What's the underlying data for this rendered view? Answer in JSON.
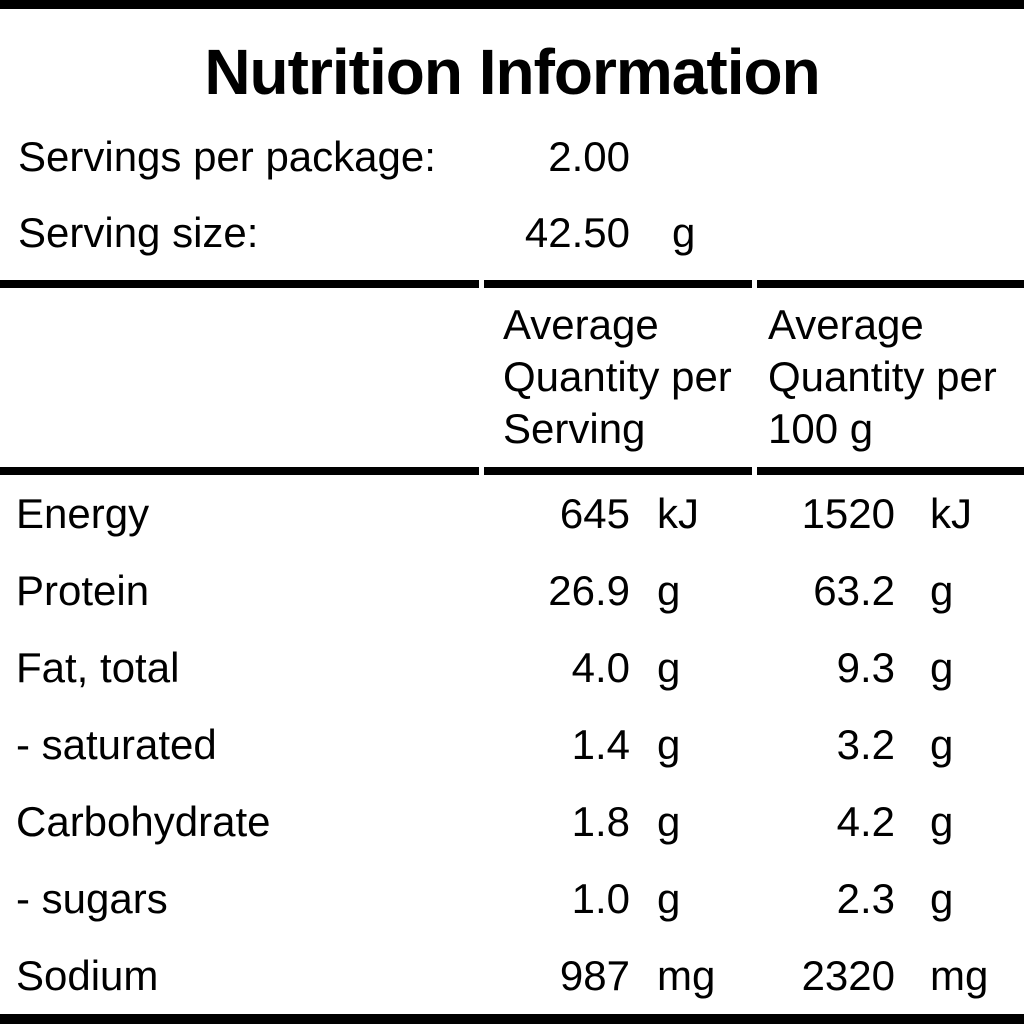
{
  "title": "Nutrition Information",
  "serving_info": {
    "rows": [
      {
        "label": "Servings per package:",
        "value": "2.00",
        "unit": ""
      },
      {
        "label": "Serving size:",
        "value": "42.50",
        "unit": "g"
      }
    ]
  },
  "table": {
    "header": {
      "nutrient_column": "",
      "per_serving_column": "Average Quantity per Serving",
      "per_100g_column": "Average Quantity per 100 g"
    },
    "rows": [
      {
        "nutrient": "Energy",
        "per_serving": "645",
        "per_serving_unit": "kJ",
        "per_100g": "1520",
        "per_100g_unit": "kJ"
      },
      {
        "nutrient": "Protein",
        "per_serving": "26.9",
        "per_serving_unit": "g",
        "per_100g": "63.2",
        "per_100g_unit": "g"
      },
      {
        "nutrient": "Fat, total",
        "per_serving": "4.0",
        "per_serving_unit": "g",
        "per_100g": "9.3",
        "per_100g_unit": "g"
      },
      {
        "nutrient": "- saturated",
        "per_serving": "1.4",
        "per_serving_unit": "g",
        "per_100g": "3.2",
        "per_100g_unit": "g"
      },
      {
        "nutrient": "Carbohydrate",
        "per_serving": "1.8",
        "per_serving_unit": "g",
        "per_100g": "4.2",
        "per_100g_unit": "g"
      },
      {
        "nutrient": "- sugars",
        "per_serving": "1.0",
        "per_serving_unit": "g",
        "per_100g": "2.3",
        "per_100g_unit": "g"
      },
      {
        "nutrient": "Sodium",
        "per_serving": "987",
        "per_serving_unit": "mg",
        "per_100g": "2320",
        "per_100g_unit": "mg"
      }
    ]
  },
  "colors": {
    "text": "#000000",
    "background": "#ffffff",
    "rule": "#000000"
  }
}
